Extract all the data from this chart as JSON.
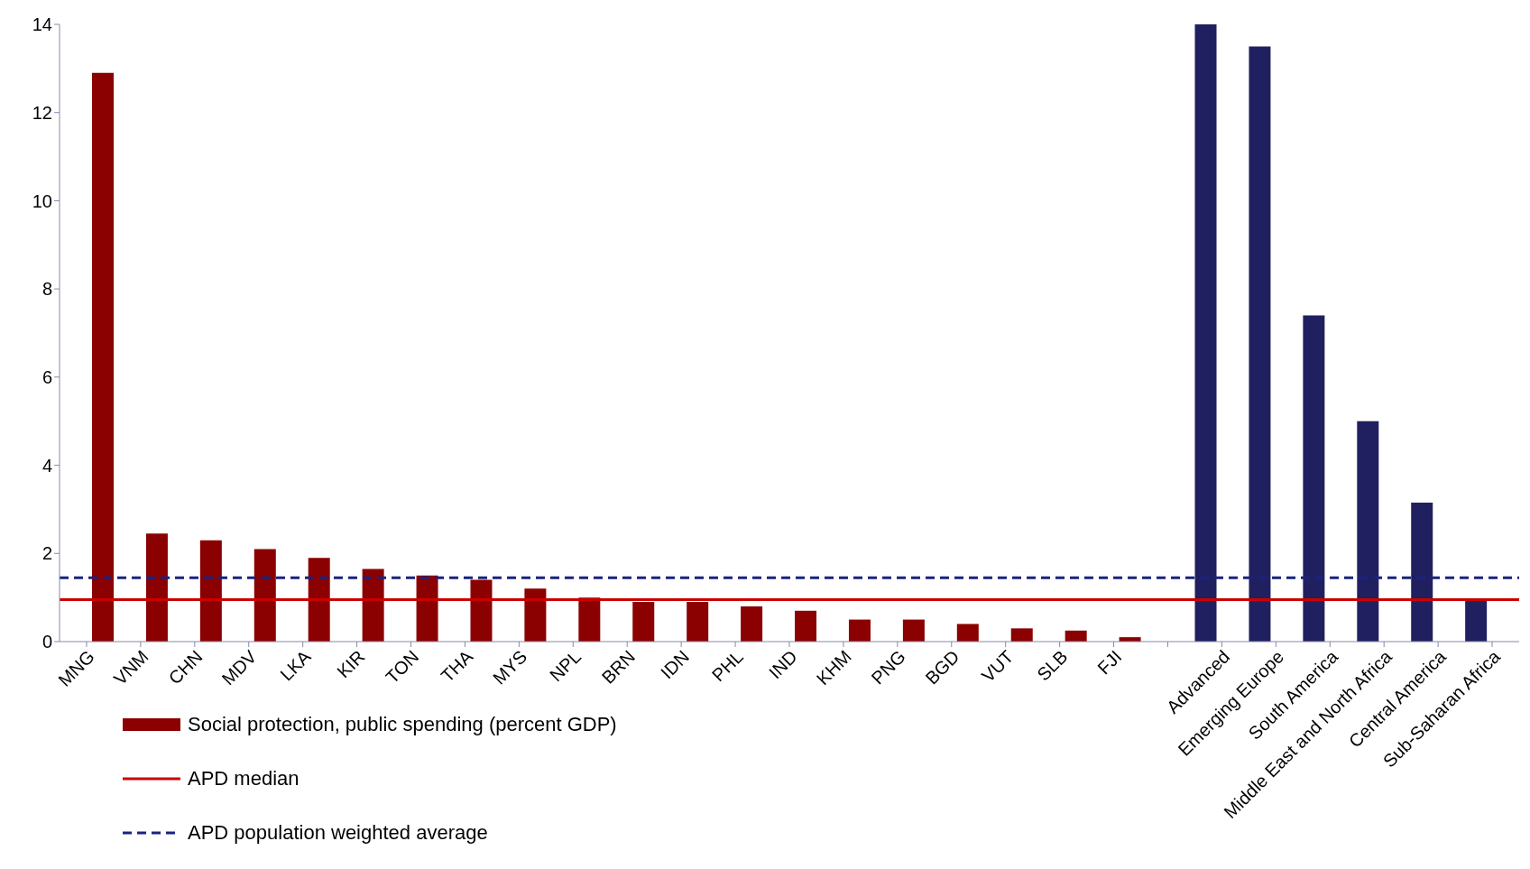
{
  "chart_data": {
    "type": "bar",
    "categories": [
      "MNG",
      "VNM",
      "CHN",
      "MDV",
      "LKA",
      "KIR",
      "TON",
      "THA",
      "MYS",
      "NPL",
      "BRN",
      "IDN",
      "PHL",
      "IND",
      "KHM",
      "PNG",
      "BGD",
      "VUT",
      "SLB",
      "FJI",
      null,
      "Advanced",
      "Emerging Europe",
      "South America",
      "Middle East and North Africa",
      "Central America",
      "Sub-Saharan Africa"
    ],
    "series": [
      {
        "name": "Social protection, public spending (percent GDP)",
        "color": "#8b0000",
        "values": [
          12.9,
          2.45,
          2.3,
          2.1,
          1.9,
          1.65,
          1.5,
          1.4,
          1.2,
          1.0,
          0.9,
          0.9,
          0.8,
          0.7,
          0.5,
          0.5,
          0.4,
          0.3,
          0.25,
          0.1,
          null,
          null,
          null,
          null,
          null,
          null,
          null
        ]
      },
      {
        "color": "#202060",
        "values": [
          null,
          null,
          null,
          null,
          null,
          null,
          null,
          null,
          null,
          null,
          null,
          null,
          null,
          null,
          null,
          null,
          null,
          null,
          null,
          null,
          null,
          14,
          13.5,
          7.4,
          5.0,
          3.15,
          0.95
        ]
      }
    ],
    "ylim": [
      0,
      14
    ],
    "yticks": [
      0,
      2,
      4,
      6,
      8,
      10,
      12,
      14
    ],
    "ref_lines": [
      {
        "axis": "y",
        "value": 0.95,
        "label": "APD median",
        "color": "#cc0000",
        "line_style": "solid"
      },
      {
        "axis": "y",
        "value": 1.45,
        "label": "APD population weighted average",
        "color": "#1a237e",
        "line_style": "dashed"
      }
    ],
    "legend": "bottom left",
    "grid": false
  }
}
